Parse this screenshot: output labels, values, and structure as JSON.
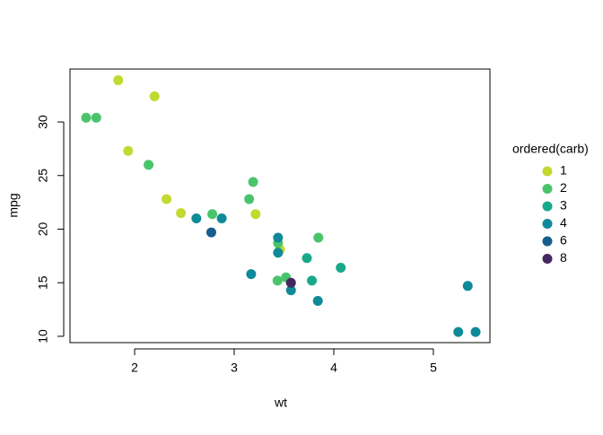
{
  "chart_data": {
    "type": "scatter",
    "x_label": "wt",
    "y_label": "mpg",
    "legend_title": "ordered(carb)",
    "xlim": [
      1.351,
      5.568
    ],
    "ylim": [
      9.41,
      34.94
    ],
    "xticks": [
      2,
      3,
      4,
      5
    ],
    "yticks": [
      10,
      15,
      20,
      25,
      30
    ],
    "series": [
      {
        "name": "1",
        "color": "#c2d92f",
        "x": [
          2.32,
          3.215,
          3.46,
          2.2,
          1.835,
          2.465,
          1.935
        ],
        "values": [
          22.8,
          21.4,
          18.1,
          32.4,
          33.9,
          21.5,
          27.3
        ]
      },
      {
        "name": "2",
        "color": "#4ac46c",
        "x": [
          3.44,
          3.19,
          3.15,
          1.615,
          3.52,
          3.435,
          3.845,
          1.513,
          2.14,
          2.78
        ],
        "values": [
          18.7,
          24.4,
          22.8,
          30.4,
          15.5,
          15.2,
          19.2,
          30.4,
          26.0,
          21.4
        ]
      },
      {
        "name": "3",
        "color": "#18a98a",
        "x": [
          4.07,
          3.73,
          3.78
        ],
        "values": [
          16.4,
          17.3,
          15.2
        ]
      },
      {
        "name": "4",
        "color": "#0f8a98",
        "x": [
          2.62,
          2.875,
          3.57,
          3.44,
          3.44,
          5.25,
          5.424,
          5.345,
          3.84,
          3.17
        ],
        "values": [
          21.0,
          21.0,
          14.3,
          19.2,
          17.8,
          10.4,
          10.4,
          14.7,
          13.3,
          15.8
        ]
      },
      {
        "name": "6",
        "color": "#175d8c",
        "x": [
          2.77
        ],
        "values": [
          19.7
        ]
      },
      {
        "name": "8",
        "color": "#45275f",
        "x": [
          3.57
        ],
        "values": [
          15.0
        ]
      }
    ]
  }
}
